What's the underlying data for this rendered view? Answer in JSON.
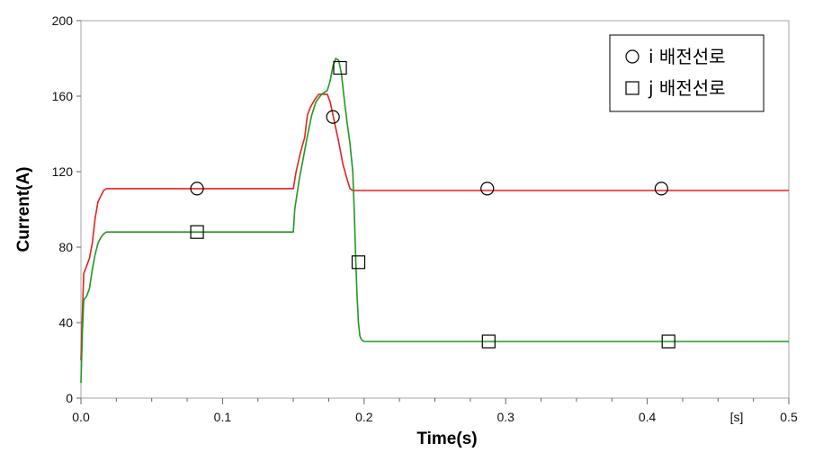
{
  "chart_data": {
    "type": "line",
    "xlabel": "Time(s)",
    "ylabel": "Current(A)",
    "x_unit_label": "[s]",
    "xlim": [
      0,
      0.5
    ],
    "ylim": [
      0,
      200
    ],
    "x_ticks": [
      0,
      0.1,
      0.2,
      0.3,
      0.4,
      0.5
    ],
    "x_tick_labels": [
      "0.0",
      "0.1",
      "0.2",
      "0.3",
      "0.4",
      "0.5"
    ],
    "y_ticks": [
      0,
      40,
      80,
      120,
      160,
      200
    ],
    "y_tick_labels": [
      "0",
      "40",
      "80",
      "120",
      "160",
      "200"
    ],
    "grid": false,
    "legend_position": "top-right",
    "series": [
      {
        "name": "i 배전선로",
        "color": "#e8211d",
        "marker": "circle",
        "x": [
          0,
          0.001,
          0.002,
          0.004,
          0.006,
          0.008,
          0.01,
          0.012,
          0.014,
          0.016,
          0.018,
          0.02,
          0.05,
          0.1,
          0.15,
          0.152,
          0.155,
          0.158,
          0.16,
          0.162,
          0.165,
          0.168,
          0.17,
          0.174,
          0.176,
          0.178,
          0.18,
          0.182,
          0.185,
          0.188,
          0.19,
          0.192,
          0.2,
          0.25,
          0.3,
          0.4,
          0.5
        ],
        "y": [
          20,
          45,
          66,
          70,
          74,
          82,
          95,
          104,
          107,
          110,
          111,
          111,
          111,
          111,
          111,
          120,
          130,
          138,
          150,
          154,
          158,
          161,
          161,
          161,
          157,
          150,
          143,
          136,
          124,
          116,
          111,
          110,
          110,
          110,
          110,
          110,
          110
        ],
        "marker_x": [
          0.082,
          0.178,
          0.287,
          0.41
        ],
        "marker_y": [
          111,
          149,
          111,
          111
        ]
      },
      {
        "name": "j 배전선로",
        "color": "#1e9a1e",
        "marker": "square",
        "x": [
          0,
          0.001,
          0.002,
          0.004,
          0.006,
          0.008,
          0.01,
          0.012,
          0.014,
          0.016,
          0.018,
          0.02,
          0.05,
          0.1,
          0.15,
          0.151,
          0.154,
          0.157,
          0.16,
          0.163,
          0.166,
          0.17,
          0.174,
          0.176,
          0.178,
          0.18,
          0.182,
          0.184,
          0.186,
          0.188,
          0.19,
          0.192,
          0.193,
          0.194,
          0.195,
          0.196,
          0.197,
          0.198,
          0.2,
          0.25,
          0.3,
          0.4,
          0.5
        ],
        "y": [
          8,
          35,
          52,
          54,
          58,
          68,
          76,
          82,
          85,
          87,
          88,
          88,
          88,
          88,
          88,
          100,
          115,
          127,
          139,
          150,
          157,
          161,
          163,
          168,
          176,
          180,
          179,
          172,
          158,
          146,
          135,
          120,
          100,
          75,
          55,
          40,
          33,
          31,
          30,
          30,
          30,
          30,
          30
        ],
        "marker_x": [
          0.082,
          0.183,
          0.196,
          0.288,
          0.415
        ],
        "marker_y": [
          88,
          175,
          72,
          30,
          30
        ]
      }
    ]
  }
}
